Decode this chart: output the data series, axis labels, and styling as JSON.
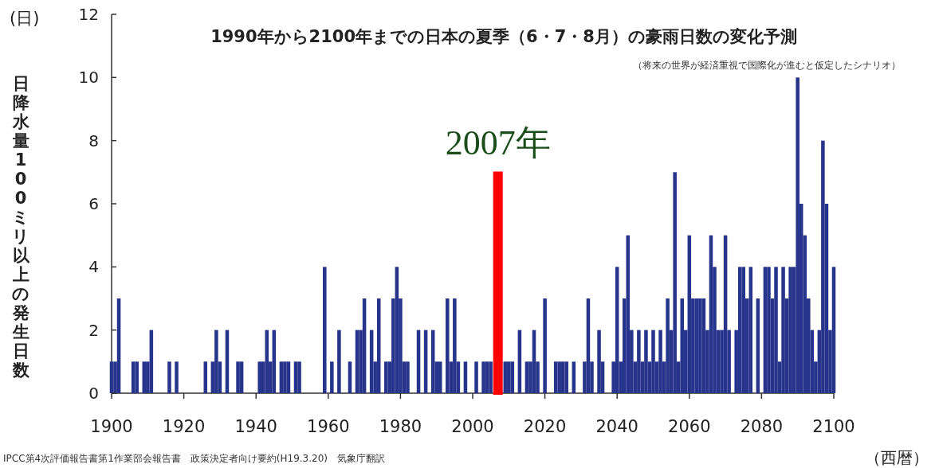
{
  "chart_data": {
    "type": "bar",
    "title": "1990年から2100年までの日本の夏季（6・7・8月）の豪雨日数の変化予測",
    "subtitle": "（将来の世界が経済重視で国際化が進むと仮定したシナリオ）",
    "ylabel": "日降水量100ミリ以上の発生日数",
    "xlabel": "（西暦）",
    "annotations": [
      "(日)",
      "IPCC第4次評価報告書第1作業部会報告書　政策決定者向け要約(H19.3.20)　気象庁翻訳"
    ],
    "x": [
      1900,
      1901,
      1902,
      1906,
      1907,
      1909,
      1910,
      1911,
      1916,
      1918,
      1926,
      1928,
      1929,
      1930,
      1932,
      1935,
      1936,
      1941,
      1942,
      1943,
      1944,
      1945,
      1947,
      1948,
      1949,
      1951,
      1952,
      1959,
      1961,
      1963,
      1966,
      1968,
      1969,
      1970,
      1972,
      1973,
      1974,
      1976,
      1977,
      1978,
      1979,
      1980,
      1981,
      1982,
      1985,
      1987,
      1989,
      1990,
      1991,
      1993,
      1994,
      1995,
      1996,
      1998,
      2001,
      2003,
      2004,
      2005,
      2009,
      2010,
      2011,
      2013,
      2015,
      2016,
      2017,
      2018,
      2020,
      2023,
      2024,
      2025,
      2026,
      2028,
      2031,
      2032,
      2033,
      2035,
      2036,
      2039,
      2040,
      2041,
      2042,
      2043,
      2044,
      2045,
      2046,
      2047,
      2048,
      2049,
      2050,
      2051,
      2052,
      2053,
      2054,
      2055,
      2056,
      2057,
      2058,
      2059,
      2060,
      2061,
      2062,
      2063,
      2064,
      2065,
      2066,
      2067,
      2068,
      2069,
      2070,
      2071,
      2073,
      2074,
      2075,
      2076,
      2077,
      2079,
      2081,
      2082,
      2083,
      2084,
      2085,
      2086,
      2087,
      2088,
      2089,
      2090,
      2091,
      2092,
      2093,
      2094,
      2095,
      2096,
      2097,
      2098,
      2099,
      2100
    ],
    "values": [
      1,
      1,
      3,
      1,
      1,
      1,
      1,
      2,
      1,
      1,
      1,
      1,
      2,
      1,
      2,
      1,
      1,
      1,
      1,
      2,
      1,
      2,
      1,
      1,
      1,
      1,
      1,
      4,
      1,
      2,
      1,
      2,
      2,
      3,
      2,
      1,
      3,
      1,
      1,
      3,
      4,
      3,
      1,
      1,
      2,
      2,
      2,
      1,
      1,
      3,
      1,
      3,
      1,
      1,
      1,
      1,
      1,
      1,
      1,
      1,
      1,
      2,
      1,
      1,
      2,
      1,
      3,
      1,
      1,
      1,
      1,
      1,
      1,
      3,
      1,
      2,
      1,
      1,
      4,
      1,
      3,
      5,
      2,
      1,
      2,
      1,
      2,
      1,
      2,
      1,
      2,
      1,
      3,
      2,
      7,
      1,
      3,
      2,
      5,
      3,
      3,
      3,
      3,
      2,
      5,
      4,
      2,
      2,
      5,
      2,
      2,
      4,
      4,
      3,
      4,
      3,
      4,
      4,
      3,
      4,
      1,
      4,
      3,
      4,
      4,
      10,
      6,
      5,
      3,
      2,
      1,
      2,
      8,
      6,
      2,
      4
    ],
    "color": "#27348b",
    "xlim": [
      1900,
      2100
    ],
    "ylim": [
      0,
      12
    ],
    "xticks": [
      1900,
      1920,
      1940,
      1960,
      1980,
      2000,
      2020,
      2040,
      2060,
      2080,
      2100
    ],
    "yticks": [
      0,
      2,
      4,
      6,
      8,
      10,
      12
    ],
    "ref_lines": [
      {
        "axis": "x",
        "value": 2007,
        "label": "2007年",
        "color": "#ff0000"
      }
    ]
  }
}
